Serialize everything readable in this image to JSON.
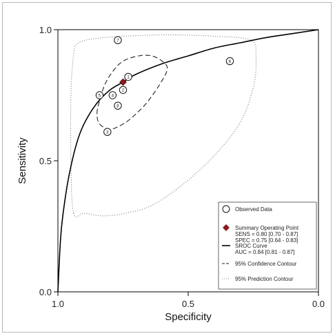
{
  "chart_data": {
    "type": "scatter",
    "xlabel": "Specificity",
    "ylabel": "Sensitivity",
    "xlim": [
      1.0,
      0.0
    ],
    "ylim": [
      0.0,
      1.0
    ],
    "x_reversed": true,
    "x_ticks": [
      "1.0",
      "0.5",
      "0.0"
    ],
    "y_ticks": [
      "0.0",
      "0.5",
      "1.0"
    ],
    "observed_data": [
      {
        "label": "1",
        "specificity": 0.73,
        "sensitivity": 0.82
      },
      {
        "label": "2",
        "specificity": 0.75,
        "sensitivity": 0.77
      },
      {
        "label": "3",
        "specificity": 0.81,
        "sensitivity": 0.61
      },
      {
        "label": "4",
        "specificity": 0.79,
        "sensitivity": 0.75
      },
      {
        "label": "5",
        "specificity": 0.84,
        "sensitivity": 0.75
      },
      {
        "label": "6",
        "specificity": 0.34,
        "sensitivity": 0.88
      },
      {
        "label": "7",
        "specificity": 0.77,
        "sensitivity": 0.96
      },
      {
        "label": "8",
        "specificity": 0.77,
        "sensitivity": 0.71
      }
    ],
    "summary_point": {
      "specificity": 0.75,
      "sensitivity": 0.8
    },
    "sroc_curve": {
      "points": [
        [
          1.0,
          0.0
        ],
        [
          0.99,
          0.2
        ],
        [
          0.98,
          0.3
        ],
        [
          0.96,
          0.43
        ],
        [
          0.93,
          0.56
        ],
        [
          0.9,
          0.64
        ],
        [
          0.85,
          0.72
        ],
        [
          0.8,
          0.77
        ],
        [
          0.75,
          0.8
        ],
        [
          0.7,
          0.83
        ],
        [
          0.6,
          0.87
        ],
        [
          0.5,
          0.9
        ],
        [
          0.4,
          0.93
        ],
        [
          0.3,
          0.95
        ],
        [
          0.2,
          0.97
        ],
        [
          0.1,
          0.985
        ],
        [
          0.0,
          1.0
        ]
      ]
    },
    "confidence_contour": {
      "center": [
        0.73,
        0.77
      ],
      "points": [
        [
          0.85,
          0.68
        ],
        [
          0.84,
          0.73
        ],
        [
          0.82,
          0.79
        ],
        [
          0.79,
          0.84
        ],
        [
          0.75,
          0.88
        ],
        [
          0.69,
          0.9
        ],
        [
          0.64,
          0.9
        ],
        [
          0.6,
          0.88
        ],
        [
          0.58,
          0.85
        ],
        [
          0.61,
          0.79
        ],
        [
          0.66,
          0.72
        ],
        [
          0.71,
          0.67
        ],
        [
          0.75,
          0.64
        ],
        [
          0.8,
          0.62
        ],
        [
          0.84,
          0.64
        ]
      ]
    },
    "prediction_contour": {
      "points": [
        [
          0.94,
          0.3
        ],
        [
          0.95,
          0.5
        ],
        [
          0.95,
          0.75
        ],
        [
          0.94,
          0.9
        ],
        [
          0.92,
          0.95
        ],
        [
          0.82,
          0.97
        ],
        [
          0.6,
          0.98
        ],
        [
          0.4,
          0.975
        ],
        [
          0.26,
          0.96
        ],
        [
          0.24,
          0.9
        ],
        [
          0.25,
          0.78
        ],
        [
          0.31,
          0.63
        ],
        [
          0.45,
          0.47
        ],
        [
          0.62,
          0.34
        ],
        [
          0.74,
          0.3
        ],
        [
          0.83,
          0.29
        ],
        [
          0.9,
          0.3
        ]
      ]
    },
    "legend": {
      "placement": "bottom-right",
      "entries": [
        {
          "symbol": "circle",
          "text": [
            "Observed Data"
          ]
        },
        {
          "symbol": "diamond",
          "text": [
            "Summary Operating Point",
            "SENS = 0.80 [0.70 - 0.87]",
            "SPEC = 0.75 [0.64 - 0.83]"
          ]
        },
        {
          "symbol": "solid-line",
          "text": [
            "SROC Curve",
            "AUC = 0.84 [0.81 - 0.87]"
          ]
        },
        {
          "symbol": "dashed-line",
          "text": [
            "95% Confidence Contour"
          ]
        },
        {
          "symbol": "dotted-line",
          "text": [
            "95% Prediction Contour"
          ]
        }
      ]
    },
    "colors": {
      "summary_point": "#8b1a1a",
      "curve": "#000000",
      "prediction": "#888888"
    }
  }
}
